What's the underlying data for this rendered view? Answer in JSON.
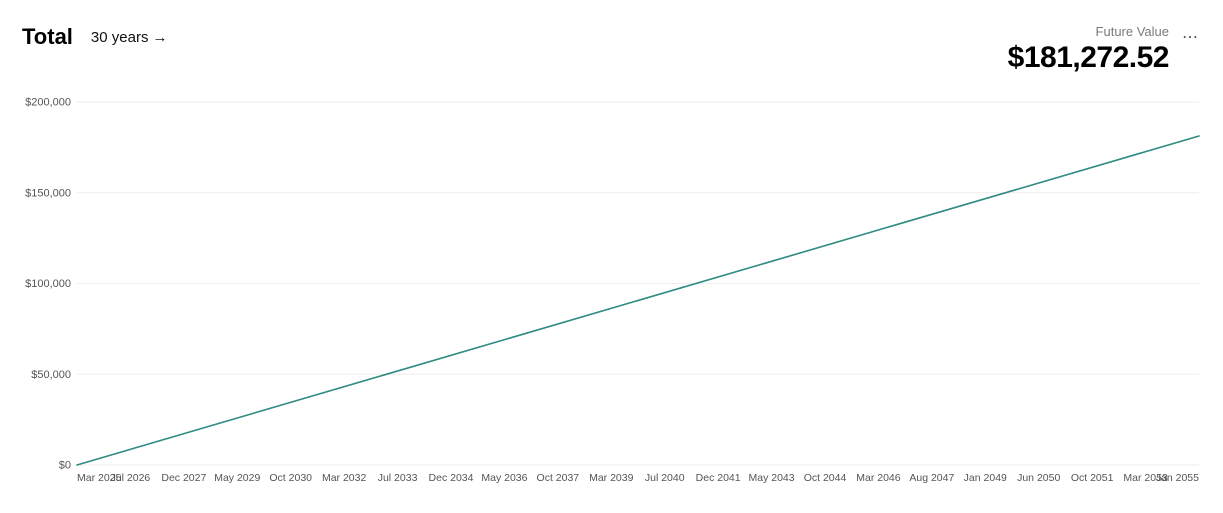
{
  "header": {
    "title": "Total",
    "range_label": "30 years",
    "arrow_glyph": "→",
    "future_value_label": "Future Value",
    "future_value_amount": "$181,272.52",
    "more_icon_glyph": "⋯"
  },
  "chart": {
    "type": "line",
    "background_color": "#ffffff",
    "grid_color": "#eeeeee",
    "line_color": "#2f8a81",
    "line_width": 1.6,
    "tick_label_color": "#555555",
    "tick_label_fontsize": 11,
    "y": {
      "min": 0,
      "max": 200000,
      "tick_step": 50000,
      "ticks": [
        {
          "value": 0,
          "label": "$0"
        },
        {
          "value": 50000,
          "label": "$50,000"
        },
        {
          "value": 100000,
          "label": "$100,000"
        },
        {
          "value": 150000,
          "label": "$150,000"
        },
        {
          "value": 200000,
          "label": "$200,000"
        }
      ]
    },
    "x": {
      "ticks": [
        "Mar 2025",
        "Jul 2026",
        "Dec 2027",
        "May 2029",
        "Oct 2030",
        "Mar 2032",
        "Jul 2033",
        "Dec 2034",
        "May 2036",
        "Oct 2037",
        "Mar 2039",
        "Jul 2040",
        "Dec 2041",
        "May 2043",
        "Oct 2044",
        "Mar 2046",
        "Aug 2047",
        "Jan 2049",
        "Jun 2050",
        "Oct 2051",
        "Mar 2053",
        "Jan 2055"
      ]
    },
    "series": {
      "start_value": 0,
      "end_value": 181272.52
    }
  }
}
